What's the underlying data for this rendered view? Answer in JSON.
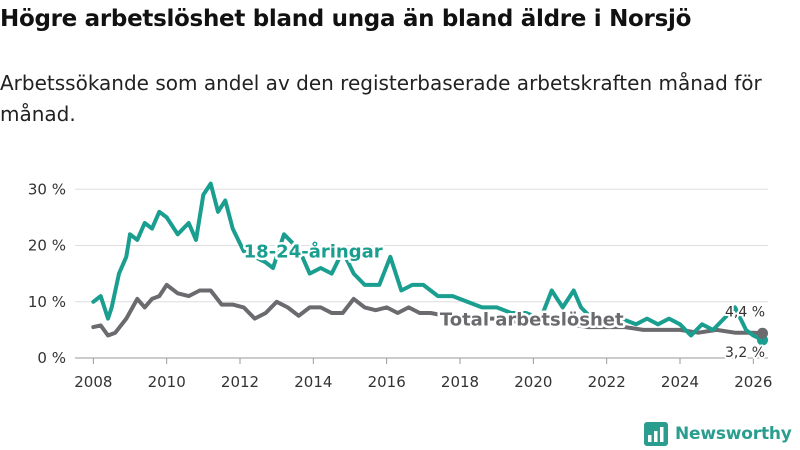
{
  "title": "Högre arbetslöshet bland unga än bland äldre i Norsjö",
  "subtitle": "Arbetssökande som andel av den registerbaserade arbetskraften månad för månad.",
  "brand": {
    "name": "Newsworthy",
    "color": "#2a9d8f",
    "icon": "newsworthy-logo-icon"
  },
  "chart_data": {
    "type": "line",
    "title": "Högre arbetslöshet bland unga än bland äldre i Norsjö",
    "xlabel": "",
    "ylabel": "",
    "xlim": [
      2007.5,
      2026.4
    ],
    "ylim": [
      0,
      32
    ],
    "y_ticks": [
      0,
      10,
      20,
      30
    ],
    "y_tick_labels": [
      "0 %",
      "10 %",
      "20 %",
      "30 %"
    ],
    "x_ticks": [
      2008,
      2010,
      2012,
      2014,
      2016,
      2018,
      2020,
      2022,
      2024,
      2026
    ],
    "x_tick_labels": [
      "2008",
      "2010",
      "2012",
      "2014",
      "2016",
      "2018",
      "2020",
      "2022",
      "2024",
      "2026"
    ],
    "grid": "horizontal",
    "series": [
      {
        "name": "18-24-åringar",
        "label": "18-24-åringar",
        "color": "#1a9e8f",
        "end_label": "3,2 %",
        "x": [
          2008.0,
          2008.2,
          2008.4,
          2008.5,
          2008.7,
          2008.9,
          2009.0,
          2009.2,
          2009.4,
          2009.6,
          2009.8,
          2010.0,
          2010.3,
          2010.6,
          2010.8,
          2011.0,
          2011.2,
          2011.4,
          2011.6,
          2011.8,
          2012.1,
          2012.4,
          2012.7,
          2012.9,
          2013.2,
          2013.5,
          2013.7,
          2013.9,
          2014.2,
          2014.5,
          2014.8,
          2015.1,
          2015.4,
          2015.8,
          2016.1,
          2016.4,
          2016.7,
          2017.0,
          2017.4,
          2017.8,
          2018.2,
          2018.6,
          2019.0,
          2019.4,
          2019.8,
          2020.2,
          2020.5,
          2020.8,
          2021.1,
          2021.3,
          2021.6,
          2022.0,
          2022.4,
          2022.8,
          2023.1,
          2023.4,
          2023.7,
          2024.0,
          2024.3,
          2024.6,
          2024.9,
          2025.2,
          2025.5,
          2025.8,
          2026.0,
          2026.25
        ],
        "values": [
          10,
          11,
          7,
          9,
          15,
          18,
          22,
          21,
          24,
          23,
          26,
          25,
          22,
          24,
          21,
          29,
          31,
          26,
          28,
          23,
          19,
          18,
          17,
          16,
          22,
          20,
          18,
          15,
          16,
          15,
          19,
          15,
          13,
          13,
          18,
          12,
          13,
          13,
          11,
          11,
          10,
          9,
          9,
          8,
          8,
          7,
          12,
          9,
          12,
          9,
          7,
          7,
          7,
          6,
          7,
          6,
          7,
          6,
          4,
          6,
          5,
          7,
          9,
          5,
          4,
          3.2
        ]
      },
      {
        "name": "Total arbetslöshet",
        "label": "Total arbetslöshet",
        "color": "#6b6b6f",
        "end_label": "4,4 %",
        "x": [
          2008.0,
          2008.2,
          2008.4,
          2008.6,
          2008.9,
          2009.2,
          2009.4,
          2009.6,
          2009.8,
          2010.0,
          2010.3,
          2010.6,
          2010.9,
          2011.2,
          2011.5,
          2011.8,
          2012.1,
          2012.4,
          2012.7,
          2013.0,
          2013.3,
          2013.6,
          2013.9,
          2014.2,
          2014.5,
          2014.8,
          2015.1,
          2015.4,
          2015.7,
          2016.0,
          2016.3,
          2016.6,
          2016.9,
          2017.2,
          2017.6,
          2018.0,
          2018.5,
          2019.0,
          2019.5,
          2020.0,
          2020.5,
          2021.0,
          2021.5,
          2022.0,
          2022.5,
          2023.0,
          2023.5,
          2024.0,
          2024.5,
          2025.0,
          2025.5,
          2026.0,
          2026.25
        ],
        "values": [
          5.5,
          5.8,
          4,
          4.5,
          7,
          10.5,
          9,
          10.5,
          11,
          13,
          11.5,
          11,
          12,
          12,
          9.5,
          9.5,
          9,
          7,
          8,
          10,
          9,
          7.5,
          9,
          9,
          8,
          8,
          10.5,
          9,
          8.5,
          9,
          8,
          9,
          8,
          8,
          7.5,
          7,
          7,
          7,
          6.5,
          6,
          6.5,
          6,
          5.5,
          5.5,
          5.5,
          5,
          5,
          5,
          4.5,
          5,
          4.5,
          4.5,
          4.4
        ]
      }
    ]
  }
}
